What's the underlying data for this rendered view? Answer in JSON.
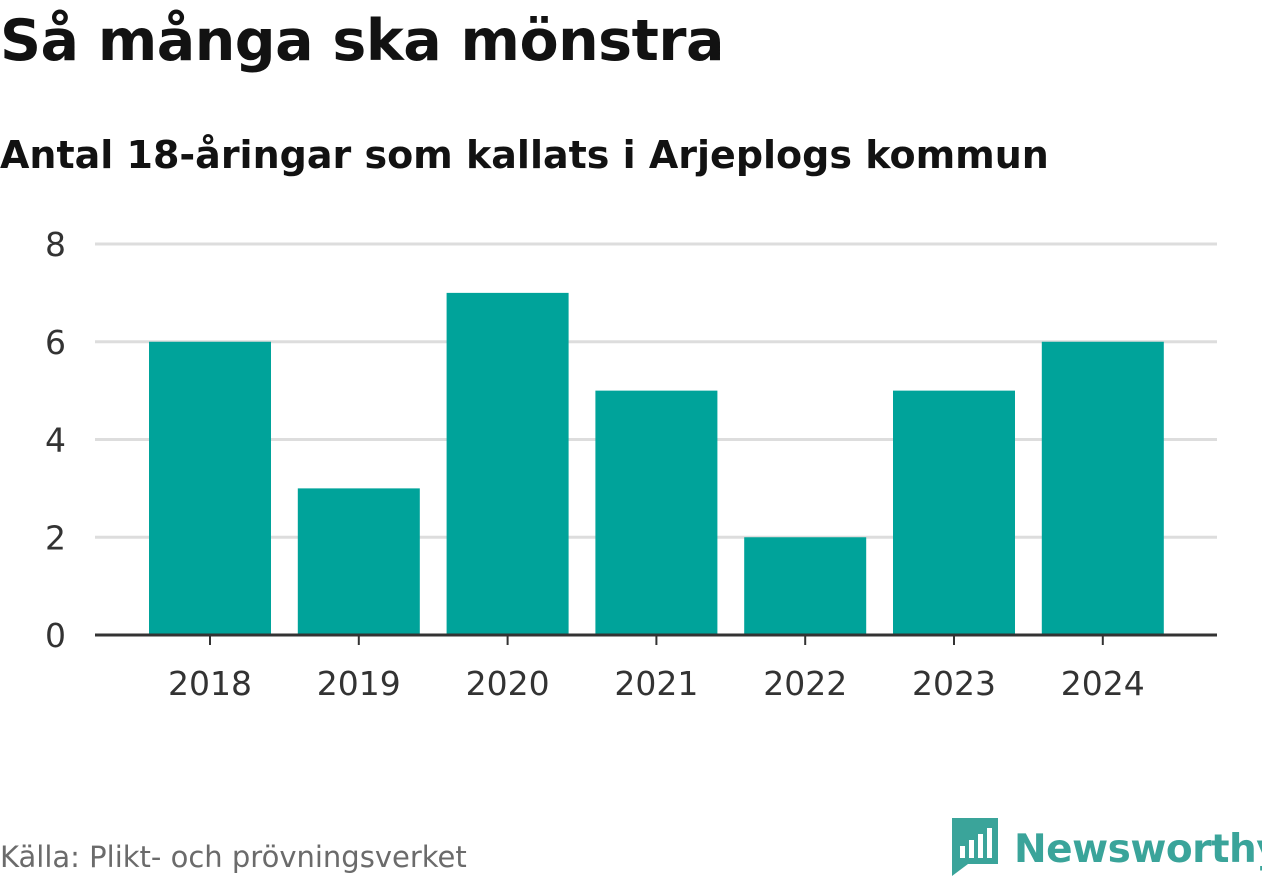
{
  "header": {
    "title": "Så många ska mönstra",
    "subtitle": "Antal 18-åringar som kallats i Arjeplogs kommun"
  },
  "footer": {
    "source": "Källa: Plikt- och prövningsverket",
    "brand": "Newsworthy",
    "brand_icon": "newsworthy-logo-icon"
  },
  "colors": {
    "bar": "#00a39a",
    "grid": "#dddddd",
    "axis": "#333333",
    "brand": "#3aa49a"
  },
  "chart_data": {
    "type": "bar",
    "title": "Så många ska mönstra",
    "subtitle": "Antal 18-åringar som kallats i Arjeplogs kommun",
    "categories": [
      "2018",
      "2019",
      "2020",
      "2021",
      "2022",
      "2023",
      "2024"
    ],
    "values": [
      6,
      3,
      7,
      5,
      2,
      5,
      6
    ],
    "xlabel": "",
    "ylabel": "",
    "ylim": [
      0,
      8
    ],
    "yticks": [
      0,
      2,
      4,
      6,
      8
    ],
    "grid": true,
    "legend": "none"
  }
}
